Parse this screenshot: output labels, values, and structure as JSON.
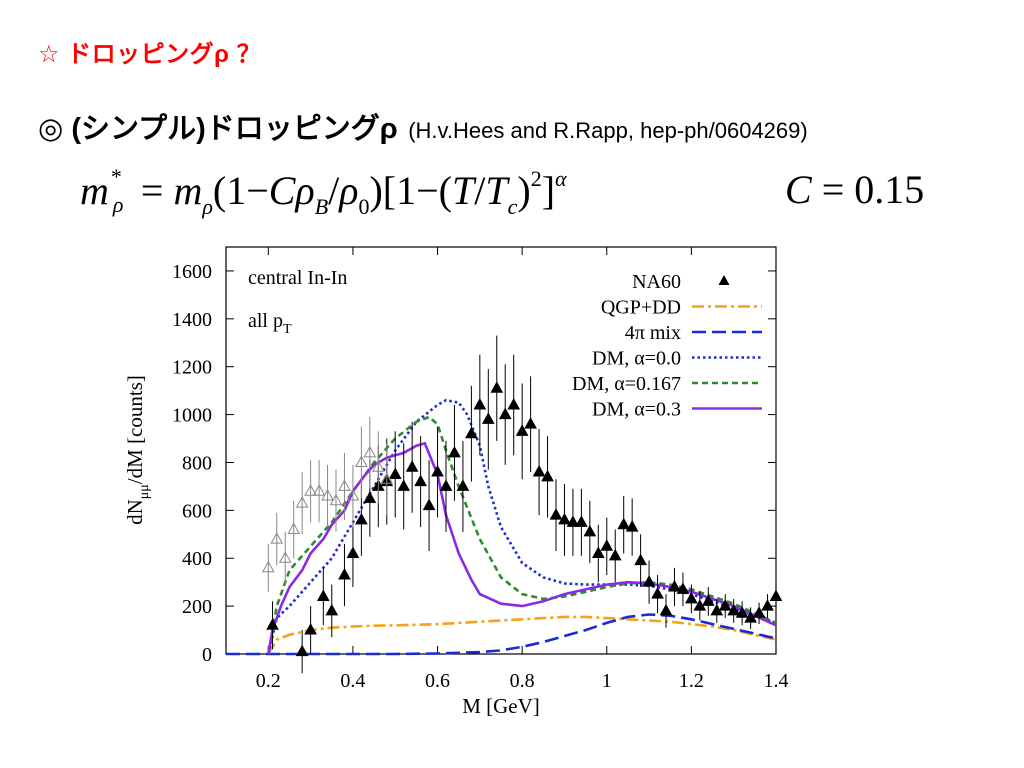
{
  "slide": {
    "title": "☆ ドロッピングρ ？",
    "subtitle": "◎ (シンプル)ドロッピングρ",
    "reference": "(H.v.Hees and R.Rapp, hep-ph/0604269)",
    "formula": {
      "lhs": "m",
      "lhs_sub": "ρ",
      "lhs_sup": "*",
      "eq": " = ",
      "m": "m",
      "m_sub": "ρ",
      "f1": "(1−",
      "C": "C",
      "rho": "ρ",
      "rho_B_sub": "B",
      "slash": "/",
      "rho0_sub": "0",
      "f2": ")[1−(",
      "T": "T",
      "Tc_sub": "c",
      "f3": ")",
      "sq": "2",
      "f4": "]",
      "alpha": "α",
      "c_text": "C",
      "c_value": " = 0.15"
    }
  },
  "chart_data": {
    "type": "line",
    "xlabel": "M [GeV]",
    "ylabel": "dN",
    "ylabel_sub": "μμ",
    "ylabel_rest": "/dM [counts]",
    "xlim": [
      0.1,
      1.4
    ],
    "ylim": [
      0,
      1700
    ],
    "xticks": [
      0.2,
      0.4,
      0.6,
      0.8,
      1,
      1.2,
      1.4
    ],
    "xtick_labels": [
      "0.2",
      "0.4",
      "0.6",
      "0.8",
      "1",
      "1.2",
      "1.4"
    ],
    "yticks": [
      0,
      200,
      400,
      600,
      800,
      1000,
      1200,
      1400,
      1600
    ],
    "ytick_labels": [
      "0",
      "200",
      "400",
      "600",
      "800",
      "1000",
      "1200",
      "1400",
      "1600"
    ],
    "annotations": [
      {
        "text": "central In-In"
      },
      {
        "text": "all p",
        "sub": "T"
      }
    ],
    "legend_position": "top-right",
    "series": [
      {
        "name": "QGP+DD",
        "color": "#f5a11a",
        "dash": "dashdot",
        "x": [
          0.2,
          0.22,
          0.25,
          0.3,
          0.35,
          0.4,
          0.45,
          0.5,
          0.55,
          0.6,
          0.65,
          0.7,
          0.75,
          0.8,
          0.85,
          0.9,
          0.95,
          1.0,
          1.05,
          1.1,
          1.15,
          1.2,
          1.25,
          1.3,
          1.35,
          1.4
        ],
        "y": [
          0,
          60,
          80,
          100,
          110,
          115,
          118,
          120,
          122,
          125,
          130,
          135,
          140,
          145,
          150,
          155,
          155,
          150,
          145,
          140,
          135,
          125,
          115,
          100,
          80,
          60
        ]
      },
      {
        "name": "4π mix",
        "color": "#1a2bd6",
        "dash": "dashed",
        "x": [
          0.1,
          0.5,
          0.6,
          0.7,
          0.75,
          0.8,
          0.85,
          0.9,
          0.95,
          1.0,
          1.05,
          1.1,
          1.15,
          1.2,
          1.25,
          1.3,
          1.35,
          1.4
        ],
        "y": [
          0,
          0,
          2,
          8,
          15,
          30,
          50,
          75,
          100,
          130,
          155,
          165,
          160,
          145,
          125,
          105,
          85,
          65
        ]
      },
      {
        "name": "DM, α=0.0",
        "color": "#1a2bd6",
        "dash": "dotted",
        "x": [
          0.2,
          0.22,
          0.25,
          0.3,
          0.35,
          0.4,
          0.45,
          0.5,
          0.55,
          0.6,
          0.62,
          0.65,
          0.67,
          0.7,
          0.72,
          0.75,
          0.8,
          0.85,
          0.9,
          0.95,
          1.0,
          1.05,
          1.1,
          1.15,
          1.2,
          1.25,
          1.3,
          1.35,
          1.4
        ],
        "y": [
          0,
          150,
          200,
          300,
          400,
          550,
          700,
          850,
          970,
          1040,
          1060,
          1050,
          1000,
          870,
          700,
          530,
          380,
          320,
          295,
          290,
          290,
          290,
          285,
          270,
          250,
          220,
          190,
          160,
          130
        ]
      },
      {
        "name": "DM, α=0.167",
        "color": "#2e8b2e",
        "dash": "short",
        "x": [
          0.2,
          0.22,
          0.25,
          0.3,
          0.35,
          0.4,
          0.45,
          0.5,
          0.55,
          0.58,
          0.6,
          0.62,
          0.65,
          0.7,
          0.75,
          0.8,
          0.85,
          0.9,
          0.95,
          1.0,
          1.05,
          1.1,
          1.15,
          1.2,
          1.25,
          1.3,
          1.35,
          1.4
        ],
        "y": [
          0,
          200,
          350,
          450,
          550,
          680,
          800,
          900,
          970,
          990,
          960,
          850,
          700,
          480,
          320,
          250,
          230,
          240,
          260,
          280,
          295,
          300,
          290,
          270,
          240,
          210,
          170,
          130
        ]
      },
      {
        "name": "DM, α=0.3",
        "color": "#8a2be2",
        "dash": "solid",
        "x": [
          0.2,
          0.21,
          0.23,
          0.25,
          0.28,
          0.3,
          0.33,
          0.35,
          0.38,
          0.4,
          0.43,
          0.45,
          0.48,
          0.5,
          0.52,
          0.55,
          0.57,
          0.6,
          0.62,
          0.65,
          0.68,
          0.7,
          0.75,
          0.8,
          0.85,
          0.9,
          0.95,
          1.0,
          1.05,
          1.1,
          1.15,
          1.2,
          1.25,
          1.3,
          1.35,
          1.4
        ],
        "y": [
          0,
          100,
          200,
          280,
          350,
          420,
          480,
          540,
          600,
          680,
          750,
          790,
          820,
          830,
          840,
          870,
          880,
          750,
          580,
          420,
          310,
          250,
          210,
          200,
          220,
          250,
          270,
          290,
          300,
          295,
          280,
          260,
          230,
          200,
          160,
          120
        ]
      },
      {
        "name": "NA60",
        "type": "scatter",
        "marker": "filled-triangle",
        "points": [
          [
            0.21,
            120,
            100
          ],
          [
            0.28,
            10,
            90
          ],
          [
            0.3,
            100,
            100
          ],
          [
            0.33,
            240,
            120
          ],
          [
            0.35,
            180,
            110
          ],
          [
            0.38,
            330,
            130
          ],
          [
            0.4,
            420,
            140
          ],
          [
            0.42,
            560,
            150
          ],
          [
            0.44,
            650,
            160
          ],
          [
            0.46,
            700,
            170
          ],
          [
            0.48,
            720,
            180
          ],
          [
            0.5,
            750,
            180
          ],
          [
            0.52,
            700,
            180
          ],
          [
            0.54,
            780,
            190
          ],
          [
            0.56,
            720,
            190
          ],
          [
            0.58,
            620,
            190
          ],
          [
            0.6,
            760,
            190
          ],
          [
            0.62,
            700,
            190
          ],
          [
            0.64,
            840,
            200
          ],
          [
            0.66,
            700,
            190
          ],
          [
            0.68,
            920,
            200
          ],
          [
            0.7,
            1040,
            210
          ],
          [
            0.72,
            980,
            210
          ],
          [
            0.74,
            1110,
            220
          ],
          [
            0.76,
            1000,
            210
          ],
          [
            0.78,
            1040,
            210
          ],
          [
            0.8,
            930,
            200
          ],
          [
            0.82,
            960,
            200
          ],
          [
            0.84,
            760,
            180
          ],
          [
            0.86,
            740,
            170
          ],
          [
            0.88,
            580,
            150
          ],
          [
            0.9,
            560,
            150
          ],
          [
            0.92,
            550,
            140
          ],
          [
            0.94,
            550,
            140
          ],
          [
            0.96,
            510,
            130
          ],
          [
            0.98,
            420,
            120
          ],
          [
            1.0,
            450,
            120
          ],
          [
            1.02,
            410,
            110
          ],
          [
            1.04,
            540,
            120
          ],
          [
            1.06,
            530,
            120
          ],
          [
            1.08,
            390,
            110
          ],
          [
            1.1,
            300,
            90
          ],
          [
            1.12,
            250,
            80
          ],
          [
            1.14,
            180,
            70
          ],
          [
            1.16,
            280,
            80
          ],
          [
            1.18,
            270,
            70
          ],
          [
            1.2,
            230,
            60
          ],
          [
            1.22,
            200,
            60
          ],
          [
            1.24,
            220,
            60
          ],
          [
            1.26,
            180,
            50
          ],
          [
            1.28,
            200,
            50
          ],
          [
            1.3,
            180,
            50
          ],
          [
            1.32,
            170,
            50
          ],
          [
            1.34,
            150,
            45
          ],
          [
            1.36,
            170,
            45
          ],
          [
            1.38,
            200,
            50
          ],
          [
            1.4,
            240,
            50
          ]
        ]
      },
      {
        "type": "scatter",
        "marker": "open-triangle",
        "points": [
          [
            0.2,
            360,
            100
          ],
          [
            0.22,
            480,
            110
          ],
          [
            0.24,
            400,
            110
          ],
          [
            0.26,
            520,
            120
          ],
          [
            0.28,
            630,
            130
          ],
          [
            0.3,
            680,
            130
          ],
          [
            0.32,
            680,
            130
          ],
          [
            0.34,
            660,
            130
          ],
          [
            0.36,
            640,
            130
          ],
          [
            0.38,
            700,
            140
          ],
          [
            0.4,
            660,
            130
          ],
          [
            0.42,
            800,
            150
          ],
          [
            0.44,
            840,
            150
          ],
          [
            0.46,
            780,
            150
          ],
          [
            0.48,
            730,
            150
          ]
        ]
      }
    ]
  }
}
